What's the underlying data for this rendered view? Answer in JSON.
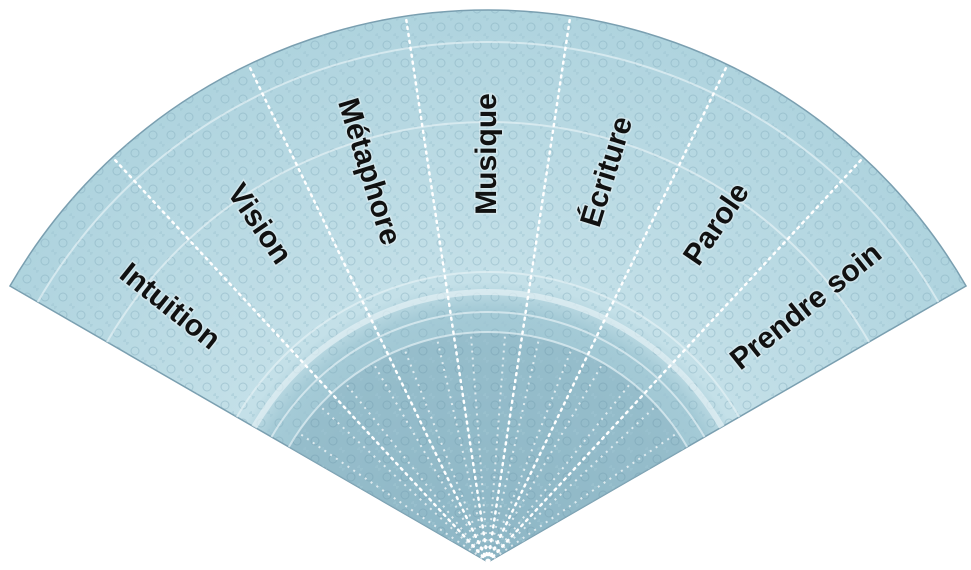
{
  "diagram": {
    "segments": [
      "Intuition",
      "Vision",
      "Métaphore",
      "Musique",
      "Écriture",
      "Parole",
      "Prendre soin"
    ]
  }
}
